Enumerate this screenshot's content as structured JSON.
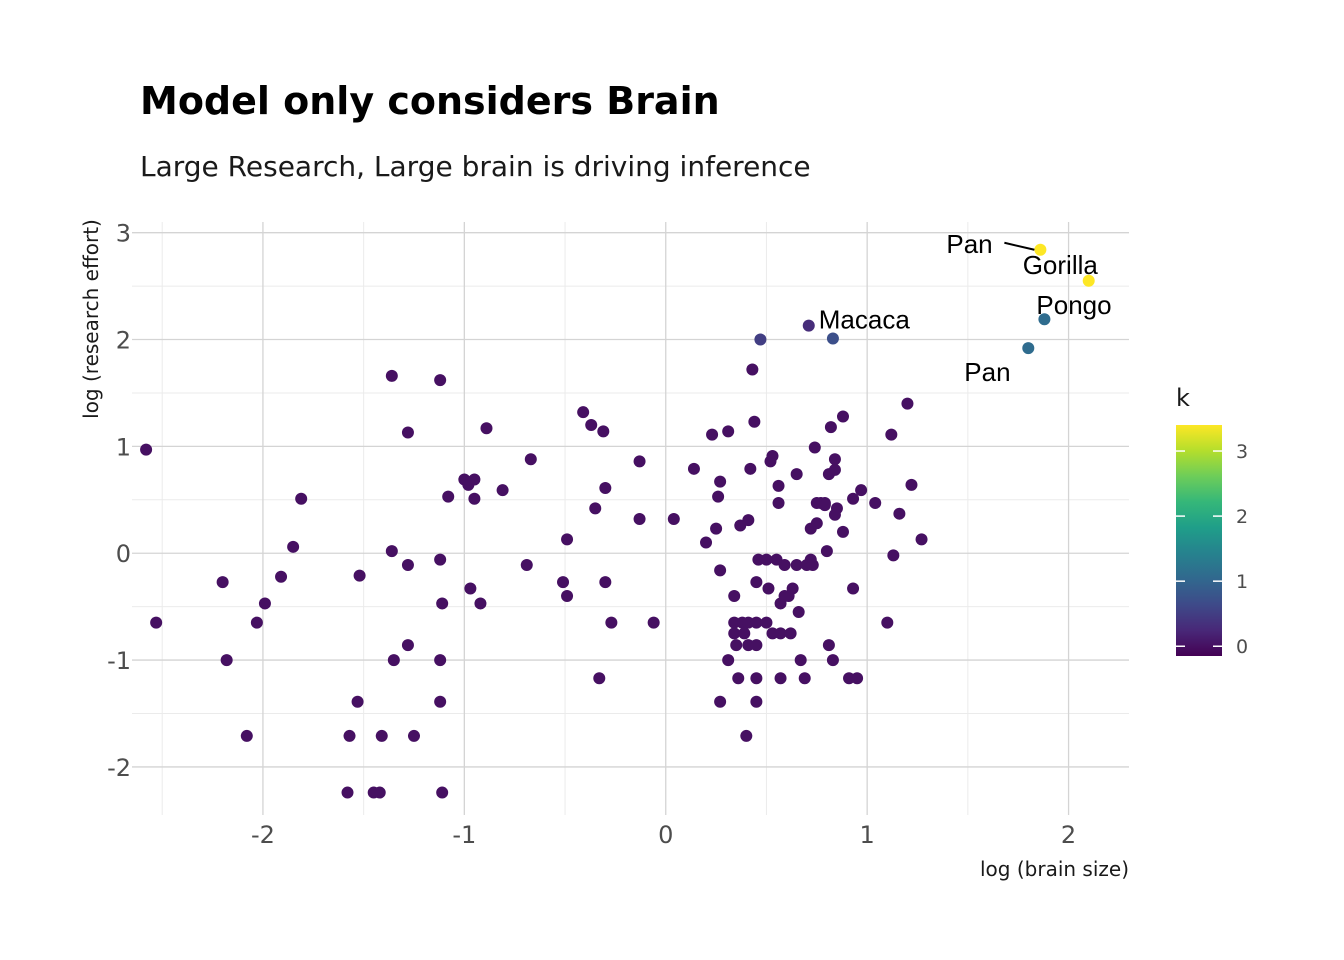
{
  "chart_data": {
    "type": "scatter",
    "title": "Model only considers Brain",
    "subtitle": "Large Research, Large brain is driving inference",
    "xlabel": "log (brain size)",
    "ylabel": "log (research effort)",
    "xlim": [
      -2.65,
      2.3
    ],
    "ylim": [
      -2.45,
      3.1
    ],
    "x_ticks": [
      -2,
      -1,
      0,
      1,
      2
    ],
    "x_tick_labels": [
      "-2",
      "-1",
      "0",
      "1",
      "2"
    ],
    "y_ticks": [
      -2,
      -1,
      0,
      1,
      2,
      3
    ],
    "y_tick_labels": [
      "-2",
      "-1",
      "0",
      "1",
      "2",
      "3"
    ],
    "grid": true,
    "legend": {
      "title": "k",
      "position": "right",
      "type": "colorbar",
      "range": [
        -0.15,
        3.4
      ],
      "ticks": [
        0,
        1,
        2,
        3
      ],
      "tick_labels": [
        "0",
        "1",
        "2",
        "3"
      ],
      "palette": [
        "#440154",
        "#482878",
        "#3E4A89",
        "#31688E",
        "#26828E",
        "#1F9E89",
        "#35B779",
        "#6DCD59",
        "#B4DE2C",
        "#FDE725"
      ]
    },
    "points": [
      {
        "x": -2.58,
        "y": 0.97,
        "k": 0
      },
      {
        "x": -2.53,
        "y": -0.65,
        "k": 0
      },
      {
        "x": -2.2,
        "y": -0.27,
        "k": 0
      },
      {
        "x": -2.18,
        "y": -1.0,
        "k": 0
      },
      {
        "x": -2.08,
        "y": -1.71,
        "k": 0
      },
      {
        "x": -2.03,
        "y": -0.65,
        "k": 0
      },
      {
        "x": -1.99,
        "y": -0.47,
        "k": 0
      },
      {
        "x": -1.91,
        "y": -0.22,
        "k": 0
      },
      {
        "x": -1.85,
        "y": 0.06,
        "k": 0
      },
      {
        "x": -1.81,
        "y": 0.51,
        "k": 0
      },
      {
        "x": -1.58,
        "y": -2.24,
        "k": 0
      },
      {
        "x": -1.57,
        "y": -1.71,
        "k": 0
      },
      {
        "x": -1.53,
        "y": -1.39,
        "k": 0
      },
      {
        "x": -1.52,
        "y": -0.21,
        "k": 0
      },
      {
        "x": -1.45,
        "y": -2.24,
        "k": 0
      },
      {
        "x": -1.42,
        "y": -2.24,
        "k": 0
      },
      {
        "x": -1.41,
        "y": -1.71,
        "k": 0
      },
      {
        "x": -1.36,
        "y": 1.66,
        "k": 0
      },
      {
        "x": -1.36,
        "y": 0.02,
        "k": 0
      },
      {
        "x": -1.35,
        "y": -1.0,
        "k": 0
      },
      {
        "x": -1.28,
        "y": 1.13,
        "k": 0
      },
      {
        "x": -1.28,
        "y": -0.11,
        "k": 0
      },
      {
        "x": -1.28,
        "y": -0.86,
        "k": 0
      },
      {
        "x": -1.25,
        "y": -1.71,
        "k": 0
      },
      {
        "x": -1.12,
        "y": 1.62,
        "k": 0
      },
      {
        "x": -1.12,
        "y": -0.06,
        "k": 0
      },
      {
        "x": -1.12,
        "y": -1.0,
        "k": 0
      },
      {
        "x": -1.11,
        "y": -0.47,
        "k": 0
      },
      {
        "x": -1.12,
        "y": -1.39,
        "k": 0
      },
      {
        "x": -1.11,
        "y": -2.24,
        "k": 0
      },
      {
        "x": -1.08,
        "y": 0.53,
        "k": 0
      },
      {
        "x": -1.0,
        "y": 0.69,
        "k": 0
      },
      {
        "x": -0.98,
        "y": 0.64,
        "k": 0
      },
      {
        "x": -0.95,
        "y": 0.69,
        "k": 0
      },
      {
        "x": -0.95,
        "y": 0.51,
        "k": 0
      },
      {
        "x": -0.97,
        "y": -0.33,
        "k": 0
      },
      {
        "x": -0.92,
        "y": -0.47,
        "k": 0
      },
      {
        "x": -0.89,
        "y": 1.17,
        "k": 0
      },
      {
        "x": -0.81,
        "y": 0.59,
        "k": 0
      },
      {
        "x": -0.69,
        "y": -0.11,
        "k": 0
      },
      {
        "x": -0.67,
        "y": 0.88,
        "k": 0
      },
      {
        "x": -0.51,
        "y": -0.27,
        "k": 0
      },
      {
        "x": -0.49,
        "y": 0.13,
        "k": 0
      },
      {
        "x": -0.49,
        "y": -0.4,
        "k": 0
      },
      {
        "x": -0.41,
        "y": 1.32,
        "k": 0
      },
      {
        "x": -0.37,
        "y": 1.2,
        "k": 0
      },
      {
        "x": -0.35,
        "y": 0.42,
        "k": 0
      },
      {
        "x": -0.33,
        "y": -1.17,
        "k": 0
      },
      {
        "x": -0.31,
        "y": 1.14,
        "k": 0
      },
      {
        "x": -0.3,
        "y": -0.27,
        "k": 0
      },
      {
        "x": -0.3,
        "y": 0.61,
        "k": 0
      },
      {
        "x": -0.27,
        "y": -0.65,
        "k": 0
      },
      {
        "x": -0.13,
        "y": 0.86,
        "k": 0
      },
      {
        "x": -0.13,
        "y": 0.32,
        "k": 0
      },
      {
        "x": -0.06,
        "y": -0.65,
        "k": 0
      },
      {
        "x": 0.04,
        "y": 0.32,
        "k": 0
      },
      {
        "x": 0.14,
        "y": 0.79,
        "k": 0
      },
      {
        "x": 0.2,
        "y": 0.1,
        "k": 0
      },
      {
        "x": 0.23,
        "y": 1.11,
        "k": 0
      },
      {
        "x": 0.25,
        "y": 0.23,
        "k": 0
      },
      {
        "x": 0.26,
        "y": 0.53,
        "k": 0
      },
      {
        "x": 0.27,
        "y": 0.67,
        "k": 0
      },
      {
        "x": 0.27,
        "y": -0.16,
        "k": 0
      },
      {
        "x": 0.27,
        "y": -1.39,
        "k": 0
      },
      {
        "x": 0.31,
        "y": 1.14,
        "k": 0
      },
      {
        "x": 0.31,
        "y": -1.0,
        "k": 0
      },
      {
        "x": 0.34,
        "y": -0.4,
        "k": 0
      },
      {
        "x": 0.34,
        "y": -0.65,
        "k": 0
      },
      {
        "x": 0.34,
        "y": -0.75,
        "k": 0
      },
      {
        "x": 0.35,
        "y": -0.86,
        "k": 0
      },
      {
        "x": 0.36,
        "y": -1.17,
        "k": 0
      },
      {
        "x": 0.37,
        "y": 0.26,
        "k": 0
      },
      {
        "x": 0.38,
        "y": -0.65,
        "k": 0
      },
      {
        "x": 0.39,
        "y": -0.75,
        "k": 0
      },
      {
        "x": 0.4,
        "y": -1.71,
        "k": 0
      },
      {
        "x": 0.41,
        "y": 0.31,
        "k": 0
      },
      {
        "x": 0.41,
        "y": -0.65,
        "k": 0
      },
      {
        "x": 0.41,
        "y": -0.86,
        "k": 0
      },
      {
        "x": 0.42,
        "y": 0.79,
        "k": 0
      },
      {
        "x": 0.43,
        "y": 1.72,
        "k": 0
      },
      {
        "x": 0.44,
        "y": 1.23,
        "k": 0
      },
      {
        "x": 0.45,
        "y": -0.27,
        "k": 0
      },
      {
        "x": 0.45,
        "y": -0.86,
        "k": 0
      },
      {
        "x": 0.45,
        "y": -0.65,
        "k": 0
      },
      {
        "x": 0.45,
        "y": -1.17,
        "k": 0
      },
      {
        "x": 0.45,
        "y": -1.39,
        "k": 0
      },
      {
        "x": 0.46,
        "y": -0.06,
        "k": 0
      },
      {
        "x": 0.47,
        "y": 2.0,
        "k": 0.5
      },
      {
        "x": 0.5,
        "y": -0.65,
        "k": 0
      },
      {
        "x": 0.5,
        "y": -0.06,
        "k": 0
      },
      {
        "x": 0.51,
        "y": -0.33,
        "k": 0
      },
      {
        "x": 0.52,
        "y": 0.86,
        "k": 0
      },
      {
        "x": 0.53,
        "y": 0.91,
        "k": 0
      },
      {
        "x": 0.53,
        "y": -0.75,
        "k": 0
      },
      {
        "x": 0.55,
        "y": -0.06,
        "k": 0
      },
      {
        "x": 0.56,
        "y": 0.47,
        "k": 0
      },
      {
        "x": 0.56,
        "y": 0.63,
        "k": 0
      },
      {
        "x": 0.57,
        "y": -0.75,
        "k": 0
      },
      {
        "x": 0.57,
        "y": -0.47,
        "k": 0
      },
      {
        "x": 0.57,
        "y": -1.17,
        "k": 0
      },
      {
        "x": 0.59,
        "y": -0.11,
        "k": 0
      },
      {
        "x": 0.59,
        "y": -0.4,
        "k": 0
      },
      {
        "x": 0.61,
        "y": -0.4,
        "k": 0
      },
      {
        "x": 0.62,
        "y": -0.75,
        "k": 0
      },
      {
        "x": 0.63,
        "y": -0.33,
        "k": 0
      },
      {
        "x": 0.65,
        "y": 0.74,
        "k": 0
      },
      {
        "x": 0.65,
        "y": -0.11,
        "k": 0
      },
      {
        "x": 0.66,
        "y": -0.55,
        "k": 0
      },
      {
        "x": 0.67,
        "y": -1.0,
        "k": 0
      },
      {
        "x": 0.69,
        "y": -1.17,
        "k": 0
      },
      {
        "x": 0.7,
        "y": -0.11,
        "k": 0
      },
      {
        "x": 0.71,
        "y": 2.13,
        "k": 0.3
      },
      {
        "x": 0.72,
        "y": -0.06,
        "k": 0
      },
      {
        "x": 0.72,
        "y": 0.23,
        "k": 0
      },
      {
        "x": 0.73,
        "y": -0.11,
        "k": 0
      },
      {
        "x": 0.74,
        "y": 0.99,
        "k": 0
      },
      {
        "x": 0.75,
        "y": 0.28,
        "k": 0
      },
      {
        "x": 0.75,
        "y": 0.47,
        "k": 0
      },
      {
        "x": 0.77,
        "y": 0.47,
        "k": 0
      },
      {
        "x": 0.79,
        "y": 0.47,
        "k": 0
      },
      {
        "x": 0.79,
        "y": 0.45,
        "k": 0
      },
      {
        "x": 0.8,
        "y": 0.02,
        "k": 0
      },
      {
        "x": 0.81,
        "y": 0.74,
        "k": 0
      },
      {
        "x": 0.81,
        "y": -0.86,
        "k": 0
      },
      {
        "x": 0.82,
        "y": 1.18,
        "k": 0
      },
      {
        "x": 0.83,
        "y": 2.01,
        "k": 0.7
      },
      {
        "x": 0.83,
        "y": -1.0,
        "k": 0
      },
      {
        "x": 0.84,
        "y": 0.36,
        "k": 0
      },
      {
        "x": 0.84,
        "y": 0.88,
        "k": 0
      },
      {
        "x": 0.84,
        "y": 0.78,
        "k": 0
      },
      {
        "x": 0.85,
        "y": 0.42,
        "k": 0
      },
      {
        "x": 0.88,
        "y": 1.28,
        "k": 0
      },
      {
        "x": 0.88,
        "y": 0.2,
        "k": 0
      },
      {
        "x": 0.91,
        "y": -1.17,
        "k": 0
      },
      {
        "x": 0.93,
        "y": -0.33,
        "k": 0
      },
      {
        "x": 0.93,
        "y": 0.51,
        "k": 0
      },
      {
        "x": 0.95,
        "y": -1.17,
        "k": 0
      },
      {
        "x": 0.97,
        "y": 0.59,
        "k": 0
      },
      {
        "x": 1.04,
        "y": 0.47,
        "k": 0
      },
      {
        "x": 1.1,
        "y": -0.65,
        "k": 0
      },
      {
        "x": 1.12,
        "y": 1.11,
        "k": 0
      },
      {
        "x": 1.13,
        "y": -0.02,
        "k": 0
      },
      {
        "x": 1.16,
        "y": 0.37,
        "k": 0
      },
      {
        "x": 1.2,
        "y": 1.4,
        "k": 0
      },
      {
        "x": 1.22,
        "y": 0.64,
        "k": 0
      },
      {
        "x": 1.27,
        "y": 0.13,
        "k": 0
      },
      {
        "x": 1.8,
        "y": 1.92,
        "k": 1.1
      },
      {
        "x": 1.86,
        "y": 2.84,
        "k": 3.4
      },
      {
        "x": 1.88,
        "y": 2.19,
        "k": 1.1
      },
      {
        "x": 2.1,
        "y": 2.55,
        "k": 3.4
      }
    ],
    "annotations": [
      {
        "label": "Pan",
        "x": 1.86,
        "y": 2.84,
        "leader": true
      },
      {
        "label": "Gorilla",
        "x": 2.1,
        "y": 2.55,
        "leader": false
      },
      {
        "label": "Macaca",
        "x": 0.71,
        "y": 2.13,
        "leader": false
      },
      {
        "label": "Pongo",
        "x": 1.88,
        "y": 2.19,
        "leader": false
      },
      {
        "label": "Pan",
        "x": 1.8,
        "y": 1.92,
        "leader": false
      }
    ]
  }
}
